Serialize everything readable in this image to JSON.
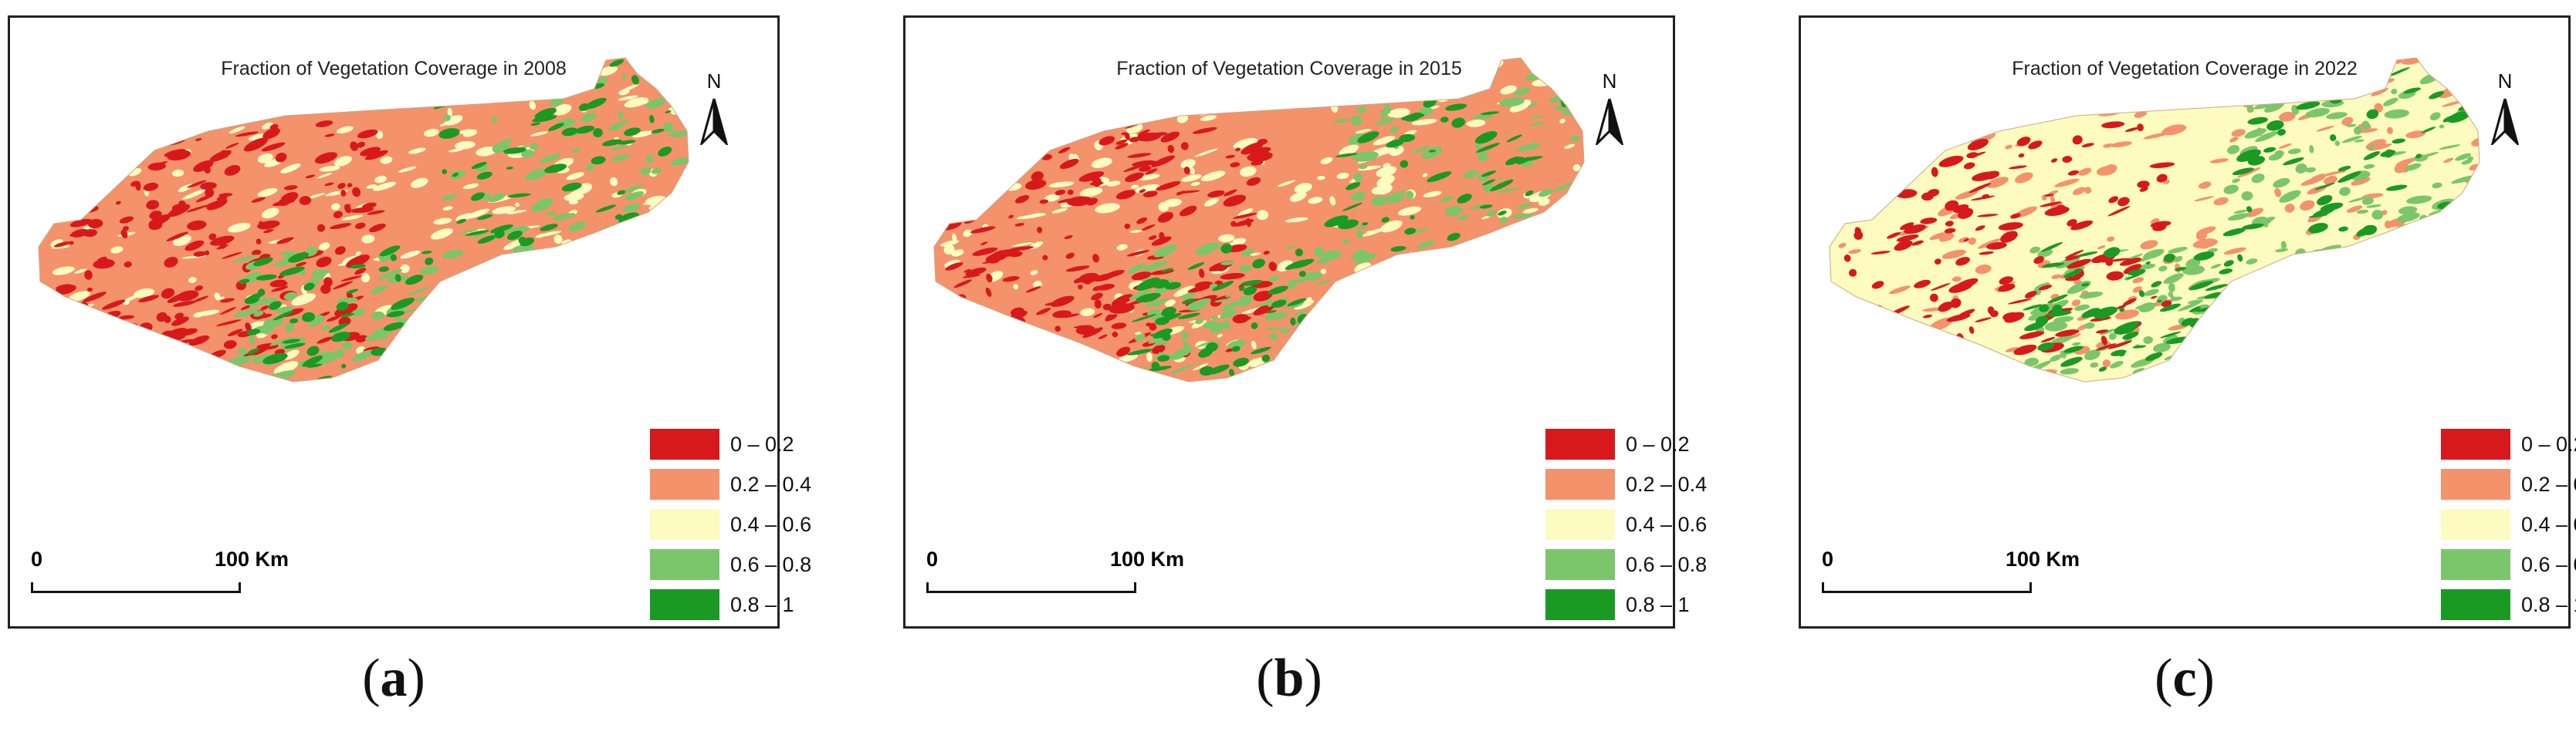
{
  "panels": [
    {
      "title": "Fraction of Vegetation Coverage in 2008",
      "caption_letter": "a",
      "dominant_ranking": [
        "0.2 – 0.4",
        "0.4 – 0.6",
        "0 – 0.2",
        "0.6 – 0.8",
        "0.8 – 1"
      ]
    },
    {
      "title": "Fraction of Vegetation Coverage in 2015",
      "caption_letter": "b",
      "dominant_ranking": [
        "0.2 – 0.4",
        "0.4 – 0.6",
        "0 – 0.2",
        "0.6 – 0.8",
        "0.8 – 1"
      ]
    },
    {
      "title": "Fraction of Vegetation Coverage in 2022",
      "caption_letter": "c",
      "dominant_ranking": [
        "0.4 – 0.6",
        "0.2 – 0.4",
        "0.6 – 0.8",
        "0 – 0.2",
        "0.8 – 1"
      ]
    }
  ],
  "north_label": "N",
  "scale": {
    "start": "0",
    "end": "100 Km"
  },
  "legend": [
    {
      "label": "0 – 0.2",
      "color": "#d7191c"
    },
    {
      "label": "0.2 – 0.4",
      "color": "#f4926b"
    },
    {
      "label": "0.4 – 0.6",
      "color": "#fdfbbf"
    },
    {
      "label": "0.6 – 0.8",
      "color": "#7bc66a"
    },
    {
      "label": "0.8 – 1",
      "color": "#1a9a23"
    }
  ],
  "caption_paren_open": "(",
  "caption_paren_close": ")"
}
